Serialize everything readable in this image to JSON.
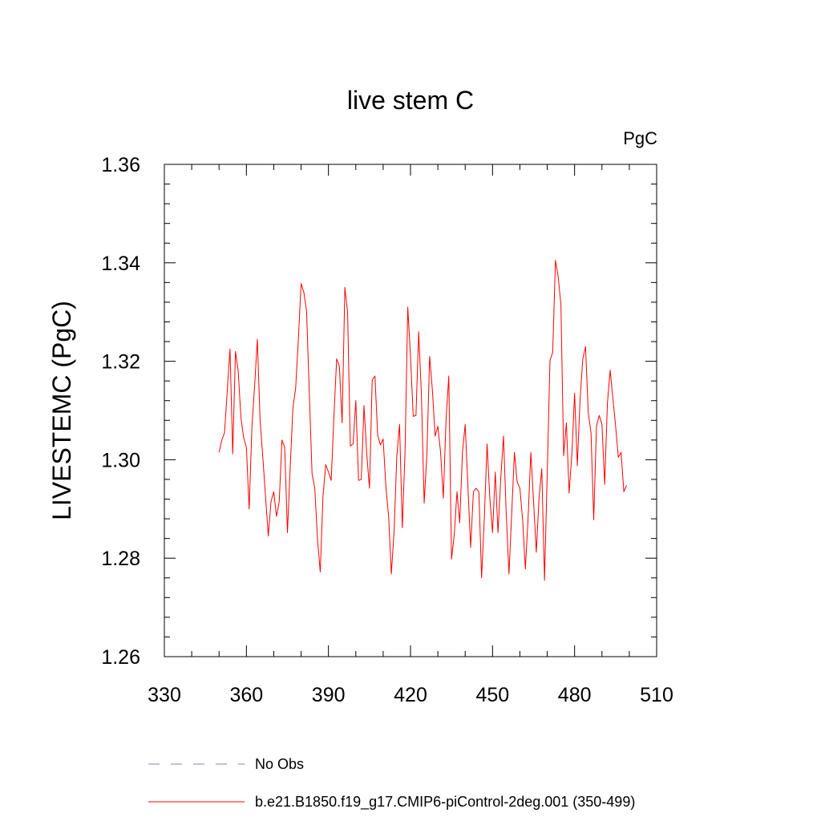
{
  "chart_data": {
    "type": "line",
    "title": "live stem C",
    "units_label": "PgC",
    "ylabel": "LIVESTEMC  (PgC)",
    "xlabel": "",
    "xlim": [
      330,
      510
    ],
    "ylim": [
      1.26,
      1.36
    ],
    "x_ticks": [
      "330",
      "360",
      "390",
      "420",
      "450",
      "480",
      "510"
    ],
    "y_ticks": [
      "1.26",
      "1.28",
      "1.30",
      "1.32",
      "1.34",
      "1.36"
    ],
    "grid": false,
    "legend_position": "bottom",
    "legend": [
      {
        "name": "No Obs",
        "color": "#8080c8",
        "style": "dashed"
      },
      {
        "name": "b.e21.B1850.f19_g17.CMIP6-piControl-2deg.001 (350-499)",
        "color": "#ff0000",
        "style": "solid"
      }
    ],
    "series": [
      {
        "name": "b.e21.B1850.f19_g17.CMIP6-piControl-2deg.001 (350-499)",
        "color": "#ff0000",
        "x_start": 350,
        "x_step": 1,
        "values": [
          1.3015,
          1.304,
          1.3055,
          1.314,
          1.3225,
          1.3012,
          1.322,
          1.318,
          1.3085,
          1.3045,
          1.3025,
          1.29,
          1.3065,
          1.315,
          1.3245,
          1.308,
          1.3005,
          1.2925,
          1.2845,
          1.2915,
          1.2935,
          1.2885,
          1.2915,
          1.304,
          1.3025,
          1.2852,
          1.2982,
          1.3105,
          1.3145,
          1.3245,
          1.3358,
          1.334,
          1.3302,
          1.3135,
          1.2972,
          1.2942,
          1.2838,
          1.2772,
          1.2925,
          1.299,
          1.2975,
          1.2958,
          1.3088,
          1.3205,
          1.319,
          1.3075,
          1.335,
          1.33,
          1.3028,
          1.3032,
          1.312,
          1.2958,
          1.296,
          1.311,
          1.3012,
          1.2942,
          1.3162,
          1.317,
          1.305,
          1.303,
          1.3042,
          1.2945,
          1.2885,
          1.2768,
          1.2855,
          1.3008,
          1.3072,
          1.2862,
          1.3015,
          1.331,
          1.321,
          1.3088,
          1.309,
          1.326,
          1.313,
          1.2912,
          1.3012,
          1.321,
          1.3142,
          1.3048,
          1.3068,
          1.3015,
          1.2922,
          1.3082,
          1.317,
          1.2798,
          1.2848,
          1.2935,
          1.2872,
          1.3015,
          1.3072,
          1.2945,
          1.2822,
          1.2935,
          1.2942,
          1.2935,
          1.276,
          1.2882,
          1.3032,
          1.2922,
          1.2852,
          1.2975,
          1.2852,
          1.2962,
          1.3048,
          1.2892,
          1.2768,
          1.289,
          1.3015,
          1.2955,
          1.2942,
          1.2878,
          1.2778,
          1.2882,
          1.3015,
          1.2915,
          1.2812,
          1.2922,
          1.2982,
          1.2755,
          1.2972,
          1.3202,
          1.3218,
          1.3405,
          1.3372,
          1.3315,
          1.3008,
          1.3075,
          1.2932,
          1.3012,
          1.3135,
          1.2988,
          1.3122,
          1.3205,
          1.323,
          1.3095,
          1.3055,
          1.2878,
          1.3068,
          1.309,
          1.3072,
          1.295,
          1.3115,
          1.3182,
          1.3125,
          1.3068,
          1.3005,
          1.3015,
          1.2935,
          1.2948
        ]
      }
    ]
  }
}
